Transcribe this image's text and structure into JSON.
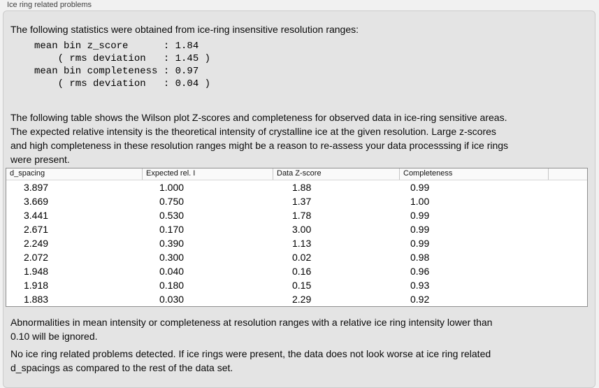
{
  "panel": {
    "title": "Ice ring related problems"
  },
  "stats": {
    "intro": "The following statistics were obtained from ice-ring insensitive resolution ranges:",
    "block": "mean bin z_score      : 1.84\n    ( rms deviation   : 1.45 )\nmean bin completeness : 0.97\n    ( rms deviation   : 0.04 )",
    "mean_bin_z_score": "1.84",
    "z_score_rms_deviation": "1.45",
    "mean_bin_completeness": "0.97",
    "completeness_rms_deviation": "0.04"
  },
  "table_section": {
    "description": "The following table shows the Wilson plot Z-scores and completeness for observed data in ice-ring sensitive areas.\nThe expected relative intensity is the theoretical intensity of crystalline ice at the given resolution. Large z-scores\nand high completeness in these resolution ranges might be a reason to re-assess your data processsing if ice rings\nwere present.",
    "columns": [
      "d_spacing",
      "Expected rel. I",
      "Data Z-score",
      "Completeness"
    ],
    "rows": [
      [
        "3.897",
        "1.000",
        "1.88",
        "0.99"
      ],
      [
        "3.669",
        "0.750",
        "1.37",
        "1.00"
      ],
      [
        "3.441",
        "0.530",
        "1.78",
        "0.99"
      ],
      [
        "2.671",
        "0.170",
        "3.00",
        "0.99"
      ],
      [
        "2.249",
        "0.390",
        "1.13",
        "0.99"
      ],
      [
        "2.072",
        "0.300",
        "0.02",
        "0.98"
      ],
      [
        "1.948",
        "0.040",
        "0.16",
        "0.96"
      ],
      [
        "1.918",
        "0.180",
        "0.15",
        "0.93"
      ],
      [
        "1.883",
        "0.030",
        "2.29",
        "0.92"
      ]
    ]
  },
  "notes": {
    "ignore_rule": "Abnormalities in mean intensity or completeness at resolution ranges with a relative ice ring intensity lower than\n0.10 will be ignored.",
    "conclusion": "No ice ring related problems detected. If ice rings were present, the data does not look worse at ice ring related\nd_spacings as compared to the rest of the data set."
  }
}
